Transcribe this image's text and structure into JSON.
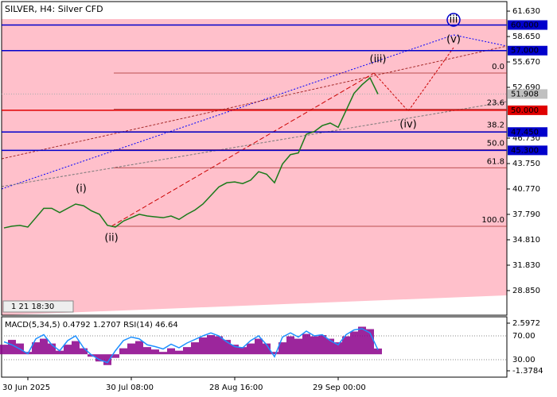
{
  "chart_data": [
    {
      "type": "line",
      "title": "SILVER, H4:  Silver CFD",
      "toolbar_text": "1 21 18:30",
      "categories": [
        null,
        null,
        null,
        "30 Jun 2025",
        null,
        null,
        null,
        null,
        null,
        null,
        null,
        null,
        null,
        null,
        null,
        null,
        "30 Jul 08:00",
        null,
        null,
        null,
        null,
        null,
        null,
        null,
        null,
        null,
        null,
        null,
        null,
        "28 Aug 16:00",
        null,
        null,
        null,
        null,
        null,
        null,
        null,
        null,
        null,
        null,
        null,
        null,
        "29 Sep 00:00",
        null,
        null,
        null,
        null,
        null
      ],
      "series": [
        {
          "color": "#1a7a1a",
          "values": [
            36.2,
            36.4,
            36.5,
            36.3,
            37.4,
            38.5,
            38.5,
            38.0,
            38.5,
            39.0,
            38.8,
            38.2,
            37.8,
            36.5,
            36.3,
            37.0,
            37.4,
            37.8,
            37.6,
            37.5,
            37.4,
            37.6,
            37.2,
            37.8,
            38.3,
            39.0,
            40.0,
            41.0,
            41.5,
            41.6,
            41.4,
            41.8,
            42.8,
            42.5,
            41.5,
            43.7,
            44.8,
            45.0,
            47.2,
            47.5,
            48.2,
            48.5,
            48.0,
            50.0,
            52.0,
            53.0,
            53.8,
            51.9
          ]
        }
      ],
      "ylim": [
        25.96,
        62.75
      ],
      "yticks": [
        {
          "value": 61.63,
          "label": "61.630"
        },
        {
          "value": 58.65,
          "label": "58.650"
        },
        {
          "value": 55.67,
          "label": "55.670"
        },
        {
          "value": 52.69,
          "label": "52.690"
        },
        {
          "value": 46.73,
          "label": "46.730"
        },
        {
          "value": 43.75,
          "label": "43.750"
        },
        {
          "value": 40.77,
          "label": "40.770"
        },
        {
          "value": 37.79,
          "label": "37.790"
        },
        {
          "value": 34.81,
          "label": "34.810"
        },
        {
          "value": 31.83,
          "label": "31.830"
        },
        {
          "value": 28.85,
          "label": "28.850"
        }
      ],
      "levels": [
        {
          "value": 60,
          "label": "60.000",
          "color": "#0000cc"
        },
        {
          "value": 57,
          "label": "57.000",
          "color": "#0000cc"
        },
        {
          "value": 50,
          "label": "50.000",
          "color": "#e00000"
        },
        {
          "value": 47.45,
          "label": "47.450",
          "color": "#0000cc"
        },
        {
          "value": 45.3,
          "label": "45.300",
          "color": "#0000cc"
        }
      ],
      "current_price": 51.908,
      "fib_levels": [
        {
          "level": "0.0",
          "price": 54.37
        },
        {
          "level": "23.6",
          "price": 50.13
        },
        {
          "level": "38.2",
          "price": 47.5
        },
        {
          "level": "50.0",
          "price": 45.38
        },
        {
          "level": "61.8",
          "price": 43.26
        },
        {
          "level": "100.0",
          "price": 36.39
        }
      ],
      "fib_color": "#a52a2a",
      "annotations": [
        "(i)",
        "(ii)",
        "(iii)",
        "(iv)",
        "(v)",
        "iii"
      ]
    },
    {
      "type": "indicator",
      "title": "MACD(5,34,5) 0.4792 1.2707 RSI(14) 46.64",
      "series": [
        {
          "name": "MACD",
          "color": "#8b008b",
          "values": [
            0.8,
            1.2,
            0.9,
            0.2,
            1.0,
            1.3,
            0.9,
            0.3,
            0.8,
            1.1,
            0.5,
            -0.2,
            -0.6,
            -0.9,
            -0.3,
            0.5,
            0.9,
            1.1,
            0.6,
            0.4,
            0.2,
            0.5,
            0.3,
            0.6,
            1.0,
            1.4,
            1.6,
            1.5,
            1.2,
            0.8,
            0.6,
            0.9,
            1.3,
            0.9,
            0.2,
            1.0,
            1.5,
            1.3,
            1.7,
            1.5,
            1.6,
            1.3,
            1.0,
            1.5,
            1.9,
            2.3,
            2.1,
            0.4792
          ]
        },
        {
          "name": "RSI",
          "color": "#1e90ff",
          "axis": "y2",
          "values": [
            60,
            55,
            48,
            40,
            65,
            72,
            55,
            45,
            62,
            70,
            50,
            38,
            30,
            25,
            45,
            62,
            68,
            65,
            55,
            52,
            48,
            56,
            50,
            58,
            64,
            70,
            75,
            70,
            60,
            52,
            50,
            62,
            70,
            55,
            35,
            68,
            75,
            68,
            78,
            70,
            72,
            62,
            55,
            72,
            80,
            82,
            75,
            46.64
          ]
        }
      ],
      "ylim": [
        -1.909,
        3.127
      ],
      "yticks": [
        2.5972,
        -1.3784
      ],
      "y2lim": [
        0.67,
        102
      ],
      "y2ticks": [
        {
          "value": 70,
          "label": "70.00"
        },
        {
          "value": 30,
          "label": "30.00"
        }
      ]
    }
  ]
}
